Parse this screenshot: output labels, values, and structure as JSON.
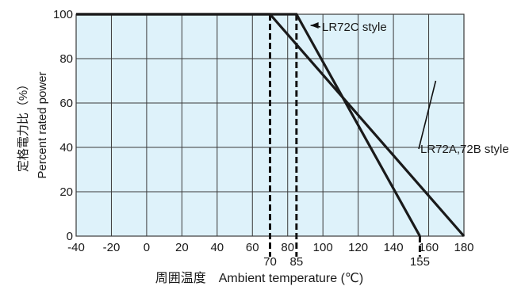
{
  "chart_data": {
    "type": "line",
    "xlabel": "周囲温度　Ambient temperature (℃)",
    "ylabel_jp": "定格電力比（%）",
    "ylabel_en": "Percent rated power",
    "xlim": [
      -40,
      180
    ],
    "ylim": [
      0,
      100
    ],
    "x_ticks": [
      -40,
      -20,
      0,
      20,
      40,
      60,
      80,
      100,
      120,
      140,
      160,
      180
    ],
    "y_ticks": [
      0,
      20,
      40,
      60,
      80,
      100
    ],
    "x_ticks_secondary": [
      70,
      85,
      155
    ],
    "grid": true,
    "series": [
      {
        "name": "LR72A,72B style",
        "points": [
          [
            -40,
            100
          ],
          [
            70,
            100
          ],
          [
            180,
            0
          ]
        ]
      },
      {
        "name": "LR72C style",
        "points": [
          [
            -40,
            100
          ],
          [
            85,
            100
          ],
          [
            155,
            0
          ]
        ]
      }
    ],
    "reference_lines_x": [
      70,
      85,
      155
    ],
    "colors": {
      "plot_bg": "#def2fa",
      "grid": "#3a3a3a",
      "series": "#1a1a1a"
    }
  }
}
